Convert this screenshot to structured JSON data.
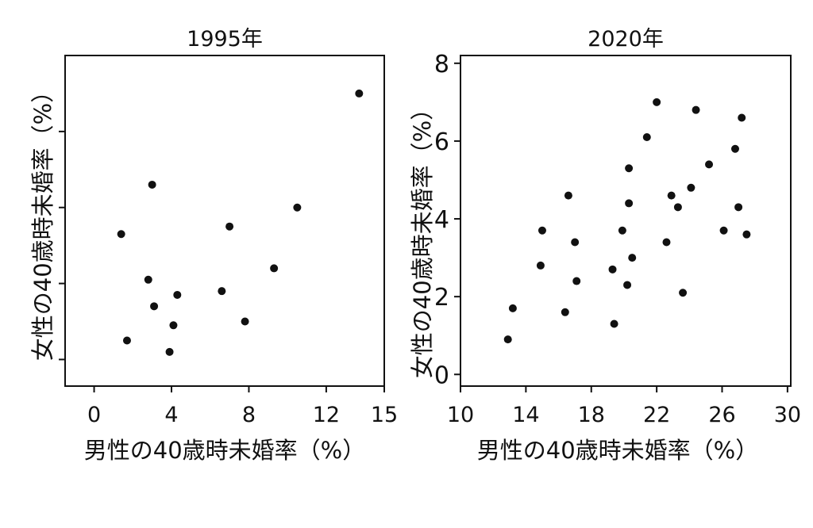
{
  "chart_data": [
    {
      "type": "scatter",
      "title": "1995年",
      "xlabel": "男性の40歳時未婚率（%）",
      "ylabel": "女性の40歳時未婚率（%）",
      "xlim": [
        -1.5,
        15
      ],
      "ylim": [
        -0.7,
        8
      ],
      "xticks": [
        0,
        4,
        8,
        12,
        15
      ],
      "xtick_labels": [
        "0",
        "4",
        "8",
        "12",
        "15"
      ],
      "yticks": [
        0,
        2,
        4,
        6
      ],
      "ytick_labels": [
        "",
        "",
        "",
        ""
      ],
      "grid": false,
      "x": [
        1.4,
        1.7,
        2.8,
        3.0,
        3.1,
        3.9,
        4.1,
        4.3,
        6.6,
        7.0,
        7.8,
        9.3,
        10.5,
        13.7
      ],
      "y": [
        3.3,
        0.5,
        2.1,
        4.6,
        1.4,
        0.2,
        0.9,
        1.7,
        1.8,
        3.5,
        1.0,
        2.4,
        4.0,
        7.0
      ]
    },
    {
      "type": "scatter",
      "title": "2020年",
      "xlabel": "男性の40歳時未婚率（%）",
      "ylabel": "女性の40歳時未婚率（%）",
      "xlim": [
        10,
        30.2
      ],
      "ylim": [
        -0.3,
        8.2
      ],
      "xticks": [
        10,
        14,
        18,
        22,
        26,
        30
      ],
      "xtick_labels": [
        "10",
        "14",
        "18",
        "22",
        "26",
        "30"
      ],
      "yticks": [
        0,
        2,
        4,
        6,
        8
      ],
      "ytick_labels": [
        "0",
        "2",
        "4",
        "6",
        "8"
      ],
      "grid": false,
      "x": [
        12.9,
        13.2,
        14.9,
        15.0,
        16.4,
        16.6,
        17.0,
        17.1,
        19.3,
        19.4,
        19.9,
        20.2,
        20.3,
        20.3,
        20.5,
        21.4,
        22.0,
        22.6,
        22.9,
        23.3,
        23.6,
        24.1,
        24.4,
        25.2,
        26.1,
        26.8,
        27.0,
        27.2,
        27.5
      ],
      "y": [
        0.9,
        1.7,
        2.8,
        3.7,
        1.6,
        4.6,
        3.4,
        2.4,
        2.7,
        1.3,
        3.7,
        2.3,
        4.4,
        5.3,
        3.0,
        6.1,
        7.0,
        3.4,
        4.6,
        4.3,
        2.1,
        4.8,
        6.8,
        5.4,
        3.7,
        5.8,
        4.3,
        6.6,
        3.6
      ]
    }
  ]
}
